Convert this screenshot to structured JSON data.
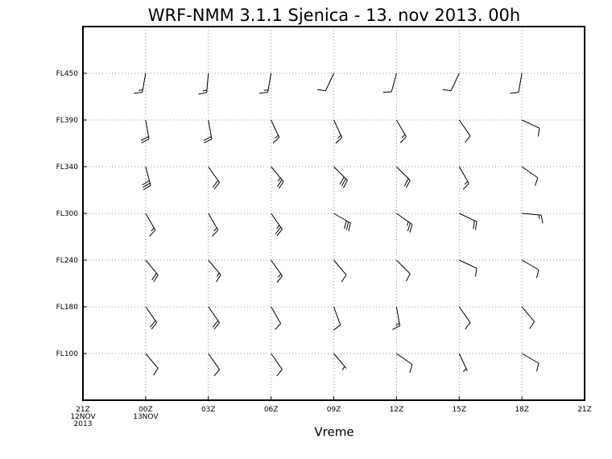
{
  "chart_data": {
    "type": "wind_barb",
    "title": "WRF-NMM 3.1.1 Sjenica - 13. nov 2013. 00h",
    "x_label": "Vreme",
    "x": [
      3,
      6,
      9,
      12,
      15,
      18,
      21
    ],
    "xlim": [
      0,
      24
    ],
    "xticks": [
      {
        "value": 0,
        "label": "21Z\n12NOV\n2013"
      },
      {
        "value": 3,
        "label": "00Z\n13NOV"
      },
      {
        "value": 6,
        "label": "03Z"
      },
      {
        "value": 9,
        "label": "06Z"
      },
      {
        "value": 12,
        "label": "09Z"
      },
      {
        "value": 15,
        "label": "12Z"
      },
      {
        "value": 18,
        "label": "15Z"
      },
      {
        "value": 21,
        "label": "18Z"
      },
      {
        "value": 24,
        "label": "21Z"
      }
    ],
    "grid": true,
    "color": "#000000",
    "series": [
      {
        "name": "FL100",
        "direction": [
          140,
          145,
          145,
          140,
          125,
          155,
          120
        ],
        "speed": [
          10,
          10,
          10,
          5,
          10,
          5,
          10
        ]
      },
      {
        "name": "FL180",
        "direction": [
          145,
          145,
          150,
          160,
          170,
          145,
          140
        ],
        "speed": [
          20,
          20,
          10,
          10,
          15,
          10,
          10
        ]
      },
      {
        "name": "FL240",
        "direction": [
          140,
          140,
          145,
          140,
          135,
          115,
          120
        ],
        "speed": [
          20,
          15,
          15,
          10,
          10,
          10,
          10
        ]
      },
      {
        "name": "FL300",
        "direction": [
          150,
          150,
          145,
          120,
          125,
          115,
          95
        ],
        "speed": [
          15,
          15,
          25,
          30,
          25,
          20,
          15
        ]
      },
      {
        "name": "FL340",
        "direction": [
          165,
          145,
          140,
          135,
          135,
          150,
          125
        ],
        "speed": [
          30,
          20,
          25,
          30,
          20,
          15,
          10
        ]
      },
      {
        "name": "FL390",
        "direction": [
          170,
          170,
          155,
          155,
          150,
          145,
          115
        ],
        "speed": [
          20,
          20,
          15,
          15,
          15,
          10,
          10
        ]
      },
      {
        "name": "FL450",
        "direction": [
          190,
          185,
          190,
          205,
          195,
          205,
          190
        ],
        "speed": [
          15,
          15,
          15,
          10,
          10,
          10,
          10
        ]
      }
    ]
  }
}
